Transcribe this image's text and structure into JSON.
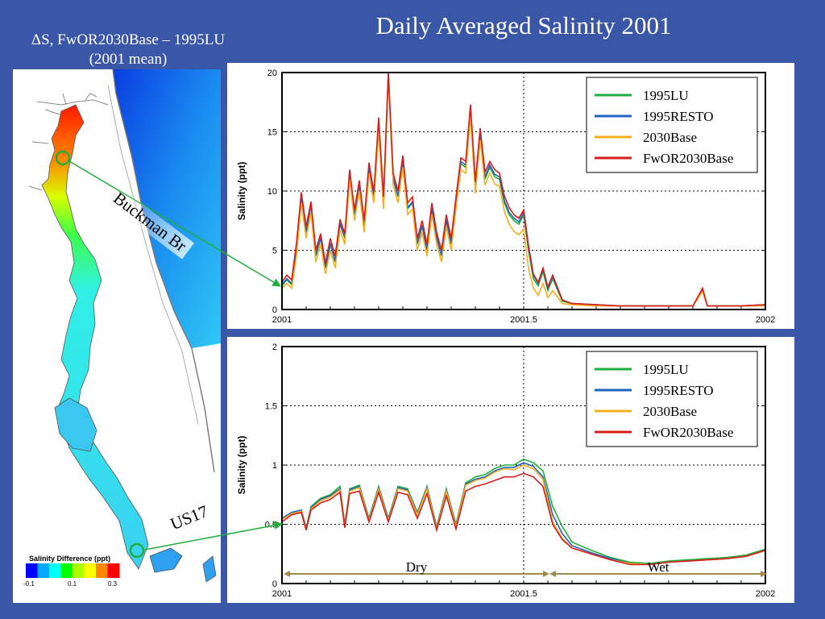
{
  "slide": {
    "title": "Daily Averaged Salinity 2001",
    "map_caption_line1": "ΔS, FwOR2030Base – 1995LU",
    "map_caption_line2": "(2001 mean)",
    "callouts": [
      "Buckman Br",
      "US17"
    ]
  },
  "colorbar": {
    "title": "Salinity Difference (ppt)",
    "ticks": [
      "-0.1",
      "0.1",
      "0.3"
    ],
    "range": [
      -0.1,
      0.3
    ],
    "colors": [
      "#0000ff",
      "#00aaff",
      "#00ffff",
      "#00ff00",
      "#aaff00",
      "#ffff00",
      "#ff8800",
      "#ff0000"
    ]
  },
  "colors": {
    "background": "#3a56a6",
    "1995LU": "#1fae3c",
    "1995RESTO": "#1f63c1",
    "2030Base": "#f4ae1e",
    "FwOR2030Base": "#d61e1e",
    "arrow": "#1fae3c",
    "period_arrow": "#a28a4c"
  },
  "chart_data": [
    {
      "type": "line",
      "id": "buckman",
      "title": "",
      "xlabel": "",
      "ylabel": "Salinity (ppt)",
      "xlim": [
        2001,
        2002
      ],
      "ylim": [
        0,
        20
      ],
      "xticks": [
        2001,
        2001.5,
        2002
      ],
      "xtick_labels": [
        "2001",
        "2001.5",
        "2002"
      ],
      "yticks": [
        0,
        5,
        10,
        15,
        20
      ],
      "ytick_labels": [
        "0",
        "5",
        "10",
        "15",
        "20"
      ],
      "grid": true,
      "legend": "top-right",
      "x": [
        2001.0,
        2001.01,
        2001.02,
        2001.03,
        2001.04,
        2001.05,
        2001.06,
        2001.07,
        2001.08,
        2001.09,
        2001.1,
        2001.11,
        2001.12,
        2001.13,
        2001.14,
        2001.15,
        2001.16,
        2001.17,
        2001.18,
        2001.19,
        2001.2,
        2001.21,
        2001.22,
        2001.23,
        2001.24,
        2001.25,
        2001.26,
        2001.27,
        2001.28,
        2001.29,
        2001.3,
        2001.31,
        2001.32,
        2001.33,
        2001.34,
        2001.35,
        2001.36,
        2001.37,
        2001.38,
        2001.39,
        2001.4,
        2001.41,
        2001.42,
        2001.43,
        2001.44,
        2001.45,
        2001.46,
        2001.47,
        2001.48,
        2001.49,
        2001.5,
        2001.51,
        2001.52,
        2001.53,
        2001.54,
        2001.55,
        2001.56,
        2001.58,
        2001.6,
        2001.65,
        2001.7,
        2001.75,
        2001.8,
        2001.85,
        2001.87,
        2001.88,
        2001.9,
        2001.95,
        2002.0
      ],
      "series": [
        {
          "name": "1995LU",
          "values": [
            2.0,
            2.5,
            2.1,
            5.0,
            9.5,
            6.5,
            8.8,
            4.5,
            6.0,
            3.5,
            5.5,
            4.0,
            7.2,
            6.0,
            11.5,
            8.0,
            10.5,
            7.0,
            12.0,
            9.5,
            15.5,
            9.0,
            19.8,
            11.0,
            9.5,
            12.5,
            8.5,
            9.0,
            5.5,
            7.0,
            5.0,
            8.5,
            6.0,
            4.5,
            7.5,
            5.5,
            9.0,
            12.3,
            12.0,
            16.8,
            10.2,
            14.8,
            11.0,
            12.0,
            11.2,
            11.0,
            9.0,
            8.0,
            7.5,
            7.2,
            8.0,
            5.0,
            2.6,
            2.0,
            3.2,
            1.6,
            2.6,
            0.7,
            0.5,
            0.4,
            0.3,
            0.3,
            0.3,
            0.3,
            1.6,
            0.3,
            0.3,
            0.3,
            0.4
          ]
        },
        {
          "name": "1995RESTO",
          "values": [
            2.1,
            2.6,
            2.2,
            5.1,
            9.6,
            6.6,
            8.9,
            4.6,
            6.1,
            3.6,
            5.6,
            4.1,
            7.3,
            6.1,
            11.6,
            8.1,
            10.6,
            7.1,
            12.1,
            9.6,
            15.7,
            9.1,
            19.9,
            11.1,
            9.6,
            12.6,
            8.6,
            9.1,
            5.6,
            7.1,
            5.1,
            8.6,
            6.1,
            4.6,
            7.6,
            5.6,
            9.2,
            12.5,
            12.2,
            17.0,
            10.4,
            15.0,
            11.2,
            12.2,
            11.4,
            11.2,
            9.2,
            8.2,
            7.7,
            7.4,
            8.2,
            5.2,
            2.9,
            2.2,
            3.4,
            1.8,
            2.8,
            0.8,
            0.5,
            0.4,
            0.3,
            0.3,
            0.3,
            0.3,
            1.7,
            0.3,
            0.3,
            0.3,
            0.4
          ]
        },
        {
          "name": "2030Base",
          "values": [
            1.8,
            2.2,
            1.8,
            4.5,
            9.0,
            6.0,
            8.2,
            4.0,
            5.5,
            3.0,
            5.0,
            3.5,
            6.7,
            5.5,
            11.0,
            7.5,
            10.0,
            6.5,
            11.5,
            9.0,
            15.0,
            8.5,
            19.5,
            10.5,
            9.0,
            12.0,
            8.0,
            8.5,
            5.0,
            6.5,
            4.5,
            8.0,
            5.5,
            4.0,
            7.0,
            5.0,
            8.5,
            11.8,
            11.5,
            16.3,
            9.8,
            14.3,
            10.5,
            11.5,
            10.6,
            10.4,
            8.3,
            7.2,
            6.6,
            6.3,
            6.8,
            3.5,
            1.8,
            1.2,
            2.2,
            1.0,
            1.6,
            0.5,
            0.4,
            0.3,
            0.3,
            0.3,
            0.3,
            0.3,
            1.5,
            0.3,
            0.3,
            0.3,
            0.3
          ]
        },
        {
          "name": "FwOR2030Base",
          "values": [
            2.3,
            2.9,
            2.5,
            5.6,
            9.9,
            7.0,
            9.1,
            5.0,
            6.4,
            3.9,
            6.0,
            4.5,
            7.6,
            6.4,
            11.8,
            8.4,
            10.9,
            7.5,
            12.4,
            9.9,
            16.2,
            9.5,
            20.0,
            11.5,
            10.0,
            13.0,
            9.0,
            9.5,
            6.0,
            7.5,
            5.5,
            9.0,
            6.5,
            5.0,
            8.0,
            6.0,
            9.5,
            12.8,
            12.5,
            17.3,
            10.8,
            15.3,
            11.6,
            12.5,
            11.8,
            11.5,
            9.6,
            8.6,
            8.0,
            7.7,
            8.4,
            5.4,
            3.0,
            2.3,
            3.5,
            1.9,
            2.9,
            0.8,
            0.5,
            0.4,
            0.3,
            0.3,
            0.3,
            0.3,
            1.8,
            0.3,
            0.3,
            0.3,
            0.4
          ]
        }
      ]
    },
    {
      "type": "line",
      "id": "us17",
      "title": "",
      "xlabel": "",
      "ylabel": "Salinity (ppt)",
      "xlim": [
        2001,
        2002
      ],
      "ylim": [
        0,
        2
      ],
      "xticks": [
        2001,
        2001.5,
        2002
      ],
      "xtick_labels": [
        "2001",
        "2001.5",
        "2002"
      ],
      "yticks": [
        0,
        0.5,
        1,
        1.5,
        2
      ],
      "ytick_labels": [
        "0",
        "0.5",
        "1",
        "1.5",
        "2"
      ],
      "grid": true,
      "legend": "top-right",
      "periods": [
        {
          "label": "Dry",
          "start": 2001.0,
          "end": 2001.55
        },
        {
          "label": "Wet",
          "start": 2001.55,
          "end": 2002.0
        }
      ],
      "x": [
        2001.0,
        2001.02,
        2001.04,
        2001.05,
        2001.06,
        2001.08,
        2001.1,
        2001.12,
        2001.13,
        2001.14,
        2001.16,
        2001.18,
        2001.2,
        2001.22,
        2001.24,
        2001.26,
        2001.28,
        2001.3,
        2001.32,
        2001.34,
        2001.36,
        2001.38,
        2001.4,
        2001.42,
        2001.44,
        2001.46,
        2001.48,
        2001.5,
        2001.52,
        2001.54,
        2001.56,
        2001.58,
        2001.6,
        2001.64,
        2001.68,
        2001.72,
        2001.76,
        2001.8,
        2001.84,
        2001.88,
        2001.92,
        2001.96,
        2002.0
      ],
      "series": [
        {
          "name": "1995LU",
          "values": [
            0.55,
            0.6,
            0.62,
            0.47,
            0.65,
            0.72,
            0.75,
            0.82,
            0.5,
            0.8,
            0.83,
            0.55,
            0.82,
            0.55,
            0.82,
            0.8,
            0.6,
            0.82,
            0.48,
            0.8,
            0.5,
            0.85,
            0.9,
            0.92,
            0.97,
            1.0,
            1.0,
            1.05,
            1.02,
            0.95,
            0.65,
            0.48,
            0.35,
            0.28,
            0.22,
            0.18,
            0.17,
            0.19,
            0.2,
            0.21,
            0.22,
            0.24,
            0.29
          ]
        },
        {
          "name": "1995RESTO",
          "values": [
            0.55,
            0.6,
            0.62,
            0.46,
            0.64,
            0.71,
            0.74,
            0.8,
            0.49,
            0.79,
            0.82,
            0.54,
            0.81,
            0.54,
            0.81,
            0.79,
            0.59,
            0.81,
            0.47,
            0.79,
            0.49,
            0.84,
            0.88,
            0.9,
            0.95,
            0.98,
            0.98,
            1.02,
            0.99,
            0.9,
            0.58,
            0.42,
            0.32,
            0.26,
            0.21,
            0.17,
            0.16,
            0.18,
            0.19,
            0.2,
            0.21,
            0.23,
            0.28
          ]
        },
        {
          "name": "2030Base",
          "values": [
            0.54,
            0.59,
            0.61,
            0.45,
            0.63,
            0.7,
            0.73,
            0.79,
            0.48,
            0.78,
            0.81,
            0.53,
            0.8,
            0.53,
            0.8,
            0.78,
            0.58,
            0.8,
            0.46,
            0.78,
            0.48,
            0.83,
            0.87,
            0.89,
            0.94,
            0.97,
            0.96,
            1.0,
            0.97,
            0.88,
            0.52,
            0.38,
            0.3,
            0.25,
            0.2,
            0.17,
            0.16,
            0.18,
            0.19,
            0.2,
            0.21,
            0.23,
            0.28
          ]
        },
        {
          "name": "FwOR2030Base",
          "values": [
            0.52,
            0.58,
            0.6,
            0.45,
            0.62,
            0.68,
            0.71,
            0.77,
            0.47,
            0.76,
            0.78,
            0.52,
            0.77,
            0.52,
            0.77,
            0.75,
            0.55,
            0.76,
            0.45,
            0.74,
            0.46,
            0.78,
            0.82,
            0.84,
            0.87,
            0.9,
            0.9,
            0.93,
            0.9,
            0.82,
            0.5,
            0.37,
            0.3,
            0.25,
            0.2,
            0.16,
            0.16,
            0.18,
            0.19,
            0.2,
            0.21,
            0.23,
            0.28
          ]
        }
      ]
    }
  ]
}
